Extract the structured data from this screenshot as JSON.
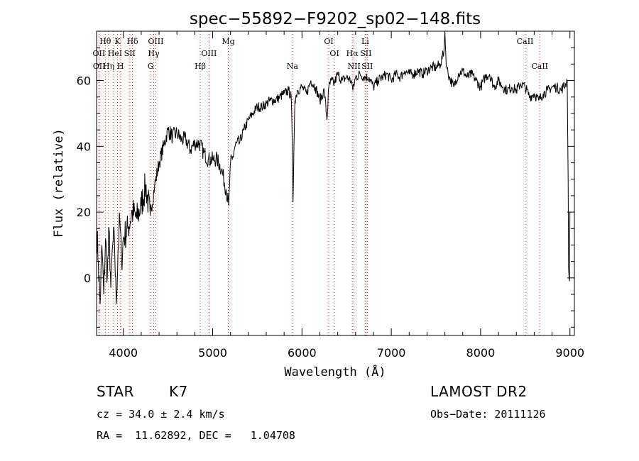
{
  "chart_data": {
    "type": "line",
    "title": "spec−55892−F9202_sp02−148.fits",
    "xlabel": "Wavelength (Å)",
    "ylabel": "Flux (relative)",
    "xlim": [
      3700,
      9050
    ],
    "ylim": [
      -17.5,
      75
    ],
    "xticks": [
      4000,
      5000,
      6000,
      7000,
      8000,
      9000
    ],
    "yticks": [
      0,
      20,
      40,
      60
    ],
    "grid": false,
    "series": [
      {
        "x": [
          3700,
          3720,
          3740,
          3760,
          3780,
          3800,
          3820,
          3840,
          3860,
          3880,
          3900,
          3920,
          3940,
          3960,
          3980,
          4000,
          4050,
          4100,
          4150,
          4200,
          4250,
          4300,
          4350,
          4400,
          4450,
          4500,
          4550,
          4600,
          4650,
          4700,
          4750,
          4800,
          4850,
          4900,
          4950,
          5000,
          5050,
          5100,
          5150,
          5180,
          5200,
          5220,
          5250,
          5300,
          5350,
          5400,
          5450,
          5500,
          5550,
          5600,
          5650,
          5700,
          5750,
          5800,
          5850,
          5880,
          5890,
          5900,
          5910,
          5920,
          5950,
          6000,
          6050,
          6100,
          6150,
          6200,
          6250,
          6280,
          6300,
          6330,
          6360,
          6400,
          6450,
          6500,
          6550,
          6560,
          6570,
          6600,
          6650,
          6700,
          6750,
          6800,
          6850,
          6900,
          6950,
          7000,
          7050,
          7100,
          7150,
          7200,
          7250,
          7300,
          7350,
          7400,
          7450,
          7500,
          7550,
          7590,
          7600,
          7610,
          7620,
          7650,
          7700,
          7750,
          7800,
          7850,
          7900,
          7950,
          8000,
          8050,
          8100,
          8150,
          8200,
          8250,
          8300,
          8350,
          8400,
          8450,
          8500,
          8550,
          8600,
          8650,
          8700,
          8750,
          8800,
          8850,
          8900,
          8950,
          8970,
          8980,
          8985,
          8990,
          8995,
          9000
        ],
        "y": [
          15,
          5,
          -8,
          10,
          -5,
          12,
          0,
          15,
          -3,
          10,
          12,
          -8,
          8,
          18,
          5,
          12,
          15,
          20,
          18,
          22,
          28,
          19,
          28,
          35,
          40,
          45,
          43,
          44,
          42,
          42,
          39,
          41,
          41,
          38,
          36,
          36,
          36,
          33,
          27,
          22,
          35,
          36,
          40,
          41,
          45,
          48,
          50,
          52,
          52,
          53,
          54,
          54,
          55,
          56,
          57,
          55,
          42,
          23,
          40,
          54,
          57,
          58,
          56,
          60,
          58,
          54,
          57,
          48,
          58,
          60,
          59,
          62,
          60,
          61,
          60,
          59,
          57,
          61,
          62,
          61,
          61,
          58,
          60,
          61,
          62,
          60,
          62,
          61,
          63,
          62,
          62,
          63,
          62,
          63,
          64,
          64,
          65,
          69,
          75,
          68,
          64,
          61,
          58,
          62,
          63,
          61,
          62,
          60,
          58,
          61,
          62,
          58,
          60,
          58,
          57,
          58,
          57,
          59,
          58,
          55,
          56,
          54,
          56,
          57,
          58,
          58,
          57,
          59,
          60,
          30,
          3,
          0,
          -1,
          20
        ]
      }
    ],
    "lines": [
      {
        "name": "Hθ",
        "wave": 3798,
        "pos": "top"
      },
      {
        "name": "K",
        "wave": 3934,
        "pos": "top"
      },
      {
        "name": "Hδ",
        "wave": 4102,
        "pos": "top"
      },
      {
        "name": "OIII",
        "wave": 4363,
        "pos": "top"
      },
      {
        "name": "Mg",
        "wave": 5175,
        "pos": "top"
      },
      {
        "name": "OI",
        "wave": 6300,
        "pos": "top"
      },
      {
        "name": "Li",
        "wave": 6708,
        "pos": "top"
      },
      {
        "name": "CaII",
        "wave": 8498,
        "pos": "top"
      },
      {
        "name": "OII",
        "wave": 3727,
        "pos": "mid"
      },
      {
        "name": "He",
        "wave": 3889,
        "pos": "mid"
      },
      {
        "name": "I",
        "wave": 3970,
        "pos": "mid"
      },
      {
        "name": "SII",
        "wave": 4072,
        "pos": "mid"
      },
      {
        "name": "Hγ",
        "wave": 4340,
        "pos": "mid"
      },
      {
        "name": "OIII",
        "wave": 4959,
        "pos": "mid"
      },
      {
        "name": "OI",
        "wave": 6364,
        "pos": "mid"
      },
      {
        "name": "Hα",
        "wave": 6563,
        "pos": "mid"
      },
      {
        "name": "SII",
        "wave": 6716,
        "pos": "mid"
      },
      {
        "name": "OII",
        "wave": 3729,
        "pos": "low"
      },
      {
        "name": "Hη",
        "wave": 3835,
        "pos": "low"
      },
      {
        "name": "H",
        "wave": 3968,
        "pos": "low"
      },
      {
        "name": "G",
        "wave": 4305,
        "pos": "low"
      },
      {
        "name": "Hβ",
        "wave": 4861,
        "pos": "low"
      },
      {
        "name": "Na",
        "wave": 5893,
        "pos": "low"
      },
      {
        "name": "NII",
        "wave": 6583,
        "pos": "low"
      },
      {
        "name": "SII",
        "wave": 6731,
        "pos": "low"
      },
      {
        "name": "CaII",
        "wave": 8662,
        "pos": "low"
      }
    ]
  },
  "info": {
    "class": "STAR",
    "subclass": "K7",
    "survey": "LAMOST DR2",
    "cz": "cz = 34.0 ± 2.4 km/s",
    "obsdate": "Obs−Date: 20111126",
    "radec": "RA =  11.62892, DEC =   1.04708"
  }
}
